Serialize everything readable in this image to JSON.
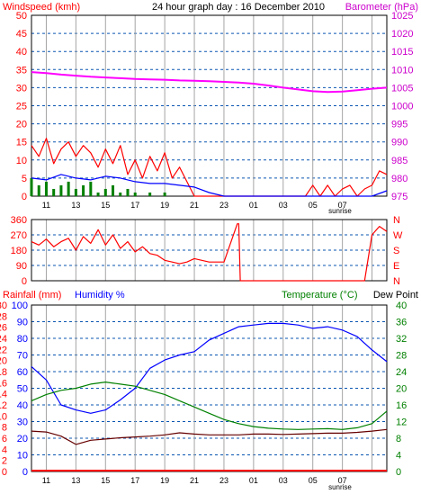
{
  "chart_data": [
    {
      "panel": "wind-pressure",
      "type": "line",
      "title": "24 hour graph day : 16 December 2010",
      "left_axis_label": "Windspeed (kmh)",
      "right_axis_label": "Barometer (hPa)",
      "left_ticks": [
        "0",
        "5",
        "10",
        "15",
        "20",
        "25",
        "30",
        "35",
        "40",
        "45",
        "50"
      ],
      "right_ticks": [
        "975",
        "980",
        "985",
        "990",
        "995",
        "1000",
        "1005",
        "1010",
        "1015",
        "1020",
        "1025"
      ],
      "left_range": [
        0,
        50
      ],
      "right_range": [
        975,
        1025
      ],
      "x_ticks": [
        "11",
        "13",
        "15",
        "17",
        "19",
        "21",
        "23",
        "01",
        "03",
        "05",
        "07"
      ],
      "sunrise_label": "sunrise",
      "x_range_hours": [
        0,
        24
      ],
      "grid": true,
      "series": [
        {
          "role": "barometer",
          "axis": "right",
          "color": "#ff00ff",
          "x": [
            0,
            1,
            2,
            3,
            4,
            5,
            6,
            7,
            8,
            9,
            10,
            11,
            12,
            13,
            14,
            15,
            16,
            17,
            18,
            19,
            20,
            21,
            22,
            23,
            24
          ],
          "y": [
            1009.3,
            1009.0,
            1008.6,
            1008.3,
            1008.0,
            1007.8,
            1007.6,
            1007.4,
            1007.3,
            1007.2,
            1007.0,
            1006.9,
            1006.8,
            1006.6,
            1006.4,
            1006.1,
            1005.6,
            1005.0,
            1004.5,
            1004.0,
            1003.8,
            1003.9,
            1004.3,
            1004.7,
            1005.0
          ]
        },
        {
          "role": "wind-gust",
          "axis": "left",
          "color": "#ff0000",
          "x": [
            0,
            0.5,
            1,
            1.5,
            2,
            2.5,
            3,
            3.5,
            4,
            4.5,
            5,
            5.5,
            6,
            6.5,
            7,
            7.5,
            8,
            8.5,
            9,
            9.5,
            10,
            10.5,
            11,
            11.5,
            12,
            12.5,
            13,
            13.5,
            14,
            14.5,
            15,
            15.5,
            16,
            16.5,
            17,
            17.5,
            18,
            18.5,
            19,
            19.5,
            20,
            20.5,
            21,
            21.5,
            22,
            22.5,
            23,
            23.5,
            24
          ],
          "y": [
            14,
            11,
            16,
            9,
            13,
            15,
            11,
            14,
            12,
            8,
            13,
            9,
            14,
            6,
            10,
            5,
            11,
            7,
            12,
            5,
            8,
            4,
            0,
            0,
            0,
            0,
            0,
            0,
            0,
            0,
            0,
            0,
            0,
            0,
            0,
            0,
            0,
            0,
            3,
            0,
            3,
            0,
            2,
            3,
            0,
            2,
            3,
            7,
            6
          ]
        },
        {
          "role": "wind-average",
          "axis": "left",
          "color": "#0000ff",
          "x": [
            0,
            1,
            2,
            3,
            4,
            5,
            6,
            7,
            8,
            9,
            10,
            11,
            12,
            13,
            14,
            15,
            16,
            17,
            18,
            19,
            20,
            21,
            22,
            23,
            24
          ],
          "y": [
            5,
            4.5,
            6,
            5,
            4.5,
            5.5,
            5,
            4,
            3.5,
            3.5,
            3,
            2.5,
            1,
            0,
            0,
            0,
            0,
            0,
            0,
            0,
            0,
            0,
            0,
            0,
            1.5
          ]
        },
        {
          "role": "wind-bars",
          "axis": "left",
          "color": "#008000",
          "x": [
            0,
            0.5,
            1,
            1.5,
            2,
            2.5,
            3,
            3.5,
            4,
            4.5,
            5,
            5.5,
            6,
            6.5,
            7,
            7.5,
            8,
            8.5,
            9,
            9.5,
            10
          ],
          "y": [
            5,
            3,
            4,
            2,
            3,
            4,
            2,
            3,
            4,
            1,
            2,
            3,
            1,
            2,
            1,
            0,
            1,
            0,
            1,
            0,
            0
          ]
        }
      ]
    },
    {
      "panel": "wind-direction",
      "type": "line",
      "left_ticks": [
        "0",
        "90",
        "180",
        "270",
        "360"
      ],
      "right_ticks": [
        "N",
        "E",
        "S",
        "W",
        "N"
      ],
      "left_range": [
        0,
        360
      ],
      "x_range_hours": [
        0,
        24
      ],
      "grid": true,
      "series": [
        {
          "role": "direction",
          "axis": "left",
          "color": "#ff0000",
          "x": [
            0,
            0.5,
            1,
            1.5,
            2,
            2.5,
            3,
            3.5,
            4,
            4.5,
            5,
            5.5,
            6,
            6.5,
            7,
            7.5,
            8,
            8.5,
            9,
            9.5,
            10,
            10.5,
            11,
            11.5,
            12,
            13,
            13.9,
            14,
            14.1,
            15,
            16,
            17,
            18,
            19,
            20,
            21,
            21.5,
            22,
            22.5,
            23,
            23.5,
            24
          ],
          "y": [
            230,
            210,
            245,
            200,
            230,
            250,
            180,
            260,
            220,
            300,
            210,
            270,
            190,
            230,
            170,
            200,
            160,
            150,
            120,
            110,
            100,
            110,
            130,
            120,
            110,
            110,
            335,
            335,
            0,
            0,
            0,
            0,
            0,
            0,
            0,
            0,
            0,
            0,
            0,
            270,
            320,
            290
          ]
        }
      ]
    },
    {
      "panel": "temp-humidity-rain",
      "type": "line",
      "left_axis_label": "Rainfall (mm)",
      "left2_axis_label": "Humidity %",
      "right_axis_label": "Temperature (°C)",
      "right2_axis_label": "Dew Point",
      "rain_ticks": [
        "0",
        "2",
        "4",
        "6",
        "8",
        "10",
        "12",
        "14",
        "16",
        "18",
        "20",
        "22",
        "24",
        "26",
        "28",
        "30"
      ],
      "humidity_ticks": [
        "0",
        "10",
        "20",
        "30",
        "40",
        "50",
        "60",
        "70",
        "80",
        "90",
        "100"
      ],
      "temp_ticks": [
        "0",
        "4",
        "8",
        "12",
        "16",
        "20",
        "24",
        "28",
        "32",
        "36",
        "40"
      ],
      "temp_range": [
        0,
        40
      ],
      "humidity_range": [
        0,
        100
      ],
      "x_range_hours": [
        0,
        24
      ],
      "grid": true,
      "series": [
        {
          "role": "humidity",
          "axis": "humidity",
          "color": "#0000ff",
          "x": [
            0,
            1,
            2,
            3,
            4,
            5,
            6,
            7,
            8,
            9,
            10,
            11,
            12,
            13,
            14,
            15,
            16,
            17,
            18,
            19,
            20,
            21,
            22,
            23,
            24
          ],
          "y": [
            63,
            55,
            40,
            37,
            35,
            37,
            43,
            50,
            62,
            67,
            70,
            72,
            79,
            83,
            87,
            88,
            89,
            89,
            88,
            86,
            87,
            85,
            81,
            73,
            66
          ]
        },
        {
          "role": "temperature",
          "axis": "temp",
          "color": "#008000",
          "x": [
            0,
            1,
            2,
            3,
            4,
            5,
            6,
            7,
            8,
            9,
            10,
            11,
            12,
            13,
            14,
            15,
            16,
            17,
            18,
            19,
            20,
            21,
            22,
            23,
            24
          ],
          "y": [
            17,
            18.5,
            19.5,
            20,
            21,
            21.5,
            21,
            20.5,
            19.5,
            18.5,
            17,
            15.5,
            14,
            12.5,
            11.5,
            10.8,
            10.4,
            10.2,
            10.1,
            10.2,
            10.3,
            10.1,
            10.5,
            11.5,
            14.5
          ]
        },
        {
          "role": "dew-point",
          "axis": "temp",
          "color": "#660000",
          "x": [
            0,
            1,
            2,
            3,
            4,
            5,
            6,
            7,
            8,
            9,
            10,
            11,
            12,
            13,
            14,
            15,
            16,
            17,
            18,
            19,
            20,
            21,
            22,
            23,
            24
          ],
          "y": [
            9.7,
            9.5,
            8.5,
            6.5,
            7.5,
            7.8,
            8.1,
            8.3,
            8.5,
            8.8,
            9.3,
            9.0,
            8.8,
            8.8,
            8.8,
            9.0,
            9.0,
            8.9,
            9.0,
            9.1,
            9.2,
            9.2,
            9.4,
            9.7,
            10.1
          ]
        },
        {
          "role": "rainfall",
          "axis": "rain",
          "color": "#ff0000",
          "x": [
            0,
            24
          ],
          "y": [
            0,
            0
          ]
        }
      ]
    }
  ],
  "colors": {
    "frame_bg": "#ffffff",
    "plot_border": "#000000",
    "grid_blue": "#0a56b2",
    "grid_grey": "#a5a5a5",
    "left_labels": "#ff0000",
    "barometer_labels": "#cc00cc",
    "temp_labels": "#008000",
    "humidity_labels": "#0000ff"
  }
}
